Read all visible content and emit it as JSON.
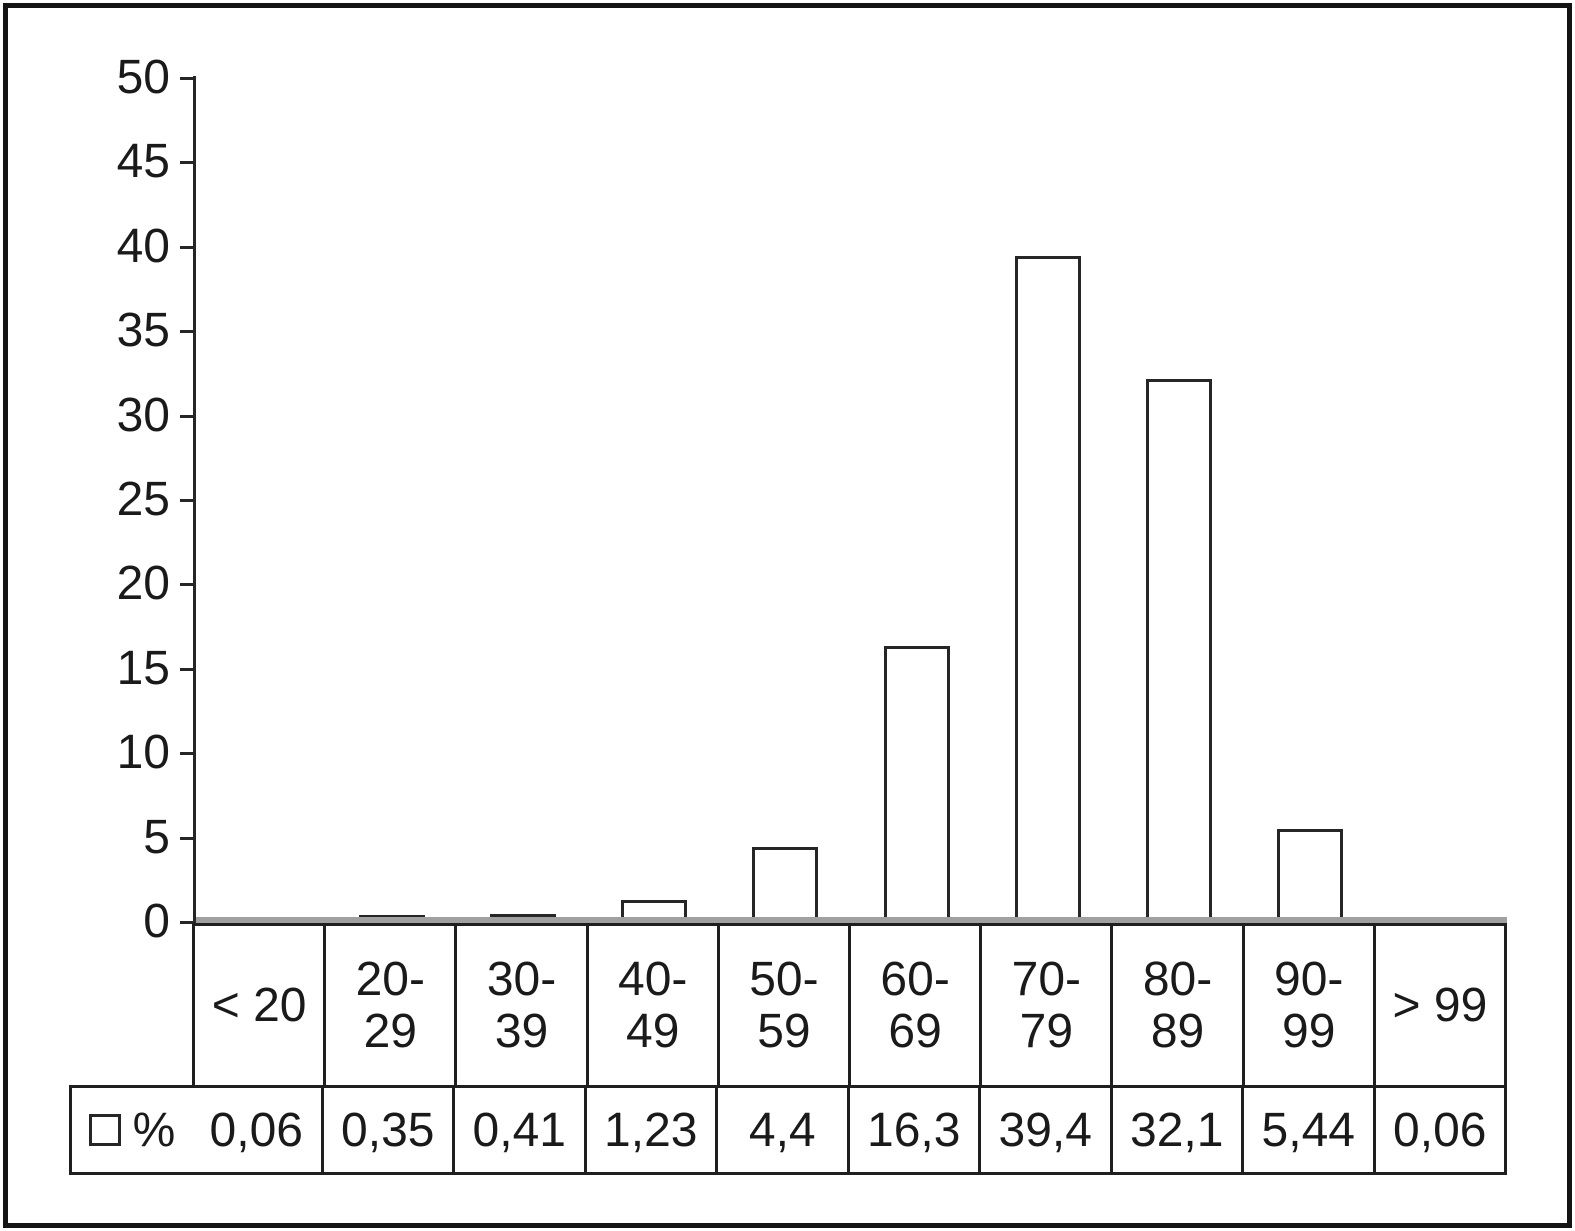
{
  "chart_data": {
    "type": "bar",
    "title": "",
    "xlabel": "",
    "ylabel": "",
    "categories": [
      "< 20",
      "20-29",
      "30-39",
      "40-49",
      "50-59",
      "60-69",
      "70-79",
      "80-89",
      "90-99",
      "> 99"
    ],
    "category_lines": [
      [
        "< 20"
      ],
      [
        "20-",
        "29"
      ],
      [
        "30-",
        "39"
      ],
      [
        "40-",
        "49"
      ],
      [
        "50-",
        "59"
      ],
      [
        "60-",
        "69"
      ],
      [
        "70-",
        "79"
      ],
      [
        "80-",
        "89"
      ],
      [
        "90-",
        "99"
      ],
      [
        "> 99"
      ]
    ],
    "series": [
      {
        "name": "%",
        "values": [
          0.06,
          0.35,
          0.41,
          1.23,
          4.4,
          16.3,
          39.4,
          32.1,
          5.44,
          0.06
        ],
        "value_labels": [
          "0,06",
          "0,35",
          "0,41",
          "1,23",
          "4,4",
          "16,3",
          "39,4",
          "32,1",
          "5,44",
          "0,06"
        ]
      }
    ],
    "ylim": [
      0,
      50
    ],
    "ytick_step": 5,
    "ytick_labels": [
      "0",
      "5",
      "10",
      "15",
      "20",
      "25",
      "30",
      "35",
      "40",
      "45",
      "50"
    ],
    "grid": false,
    "legend": {
      "series_label": "%",
      "position": "table-left"
    },
    "colors": {
      "bar_fill": "#ffffff",
      "bar_border": "#262626",
      "axis": "#262626",
      "baseline_strip": "#a0a0a0",
      "table_border": "#1f1f1f",
      "text": "#1a1a1a",
      "frame": "#141414",
      "background": "#ffffff"
    }
  }
}
